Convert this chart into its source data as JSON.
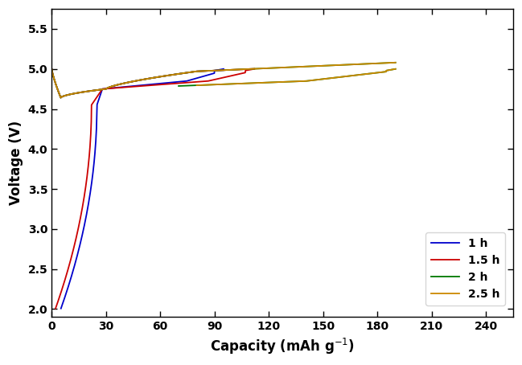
{
  "xlabel": "Capacity (mAh g⁻¹)",
  "ylabel": "Voltage (V)",
  "xlim": [
    0,
    255
  ],
  "ylim": [
    1.9,
    5.75
  ],
  "xticks": [
    0,
    30,
    60,
    90,
    120,
    150,
    180,
    210,
    240
  ],
  "yticks": [
    2.0,
    2.5,
    3.0,
    3.5,
    4.0,
    4.5,
    5.0,
    5.5
  ],
  "legend_labels": [
    "1 h",
    "1.5 h",
    "2 h",
    "2.5 h"
  ],
  "colors": [
    "#0000cc",
    "#cc0000",
    "#007700",
    "#cc8800"
  ],
  "linewidth": 1.3,
  "samples": [
    {
      "label": "1 h",
      "color": "#0000cc",
      "chg_end": 95,
      "disch_peak_cap": 30,
      "disch_end_cap": 90,
      "chg_plateau_end": 190
    },
    {
      "label": "1.5 h",
      "color": "#cc0000",
      "chg_end": 110,
      "disch_peak_cap": 30,
      "disch_end_cap": 110,
      "chg_plateau_end": 190
    },
    {
      "label": "2 h",
      "color": "#007700",
      "chg_end": 120,
      "disch_peak_cap": 30,
      "disch_end_cap": 120,
      "chg_plateau_end": 190
    },
    {
      "label": "2.5 h",
      "color": "#cc8800",
      "chg_end": 110,
      "disch_peak_cap": 30,
      "disch_end_cap": 110,
      "chg_plateau_end": 190
    }
  ]
}
